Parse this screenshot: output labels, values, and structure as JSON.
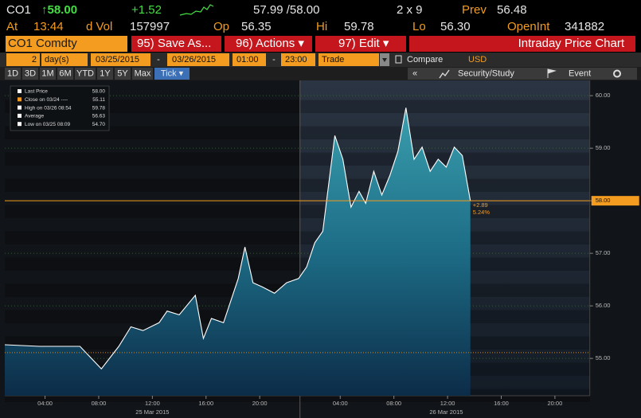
{
  "quote": {
    "ticker": "CO1",
    "last": "↑58.00",
    "change": "+1.52",
    "bid_ask": "57.99 /58.00",
    "size": "2 x 9",
    "prev_label": "Prev",
    "prev": "56.48"
  },
  "stats": [
    {
      "label": "At",
      "value": "13:44"
    },
    {
      "label": "d Vol",
      "value": "157997"
    },
    {
      "label": "Op",
      "value": "56.35"
    },
    {
      "label": "Hi",
      "value": "59.78"
    },
    {
      "label": "Lo",
      "value": "56.30"
    },
    {
      "label": "OpenInt",
      "value": "341882"
    }
  ],
  "toolbar": {
    "security": "CO1 Comdty",
    "buttons": [
      "95) Save As...",
      "96) Actions ▾",
      "97) Edit ▾"
    ],
    "title": "Intraday Price Chart"
  },
  "settings": {
    "period": "2",
    "unit": "day(s)",
    "start_date": "03/25/2015",
    "date_sep": "-",
    "end_date": "03/26/2015",
    "start_time": "01:00",
    "time_sep": "-",
    "end_time": "23:00",
    "field": "Trade",
    "compare": "Compare",
    "currency": "USD"
  },
  "ranges": [
    "1D",
    "3D",
    "1M",
    "6M",
    "YTD",
    "1Y",
    "5Y",
    "Max",
    "Tick ▾"
  ],
  "tools": [
    "«",
    "Security/Study",
    "Event"
  ],
  "legend": [
    {
      "label": "Last Price",
      "value": "58.00"
    },
    {
      "label": "Close on 03/24 ----",
      "value": "55.11"
    },
    {
      "label": "High on 03/26 08:54",
      "value": "59.78"
    },
    {
      "label": "Average",
      "value": "56.63"
    },
    {
      "label": "Low on 03/25 08:09",
      "value": "54.70"
    }
  ],
  "chart_data": {
    "type": "line",
    "x": [
      0,
      2.6,
      5.6,
      7.2,
      8.5,
      9.4,
      10.3,
      11.5,
      12.1,
      13.0,
      14.2,
      14.8,
      15.4,
      16.3,
      17.4,
      17.9,
      18.5,
      19.2,
      20.1,
      21.0,
      21.9,
      22.5,
      23.1,
      23.7,
      24.0,
      24.6,
      25.2,
      25.8,
      26.4,
      26.9,
      27.5,
      28.1,
      28.7,
      29.3,
      29.9,
      30.5,
      31.1,
      31.7,
      32.3,
      32.9,
      33.5,
      34.1,
      34.7
    ],
    "values": [
      55.26,
      55.23,
      55.23,
      54.8,
      55.23,
      55.6,
      55.53,
      55.68,
      55.9,
      55.83,
      56.2,
      55.38,
      55.76,
      55.68,
      56.52,
      57.12,
      56.44,
      56.36,
      56.24,
      56.44,
      56.52,
      56.74,
      57.2,
      57.42,
      58.03,
      59.24,
      58.79,
      57.88,
      58.18,
      57.95,
      58.56,
      58.11,
      58.48,
      58.94,
      59.77,
      58.79,
      59.02,
      58.56,
      58.79,
      58.64,
      59.02,
      58.86,
      58.0
    ],
    "color": "#ffffff",
    "xlim": [
      0,
      43.6
    ],
    "ylim": [
      54.29,
      60.29
    ],
    "yticks": [
      {
        "value": 55,
        "label": "55.00"
      },
      {
        "value": 56,
        "label": "56.00"
      },
      {
        "value": 57,
        "label": "57.00"
      },
      {
        "value": 58,
        "label": "58.00"
      },
      {
        "value": 59,
        "label": "59.00"
      },
      {
        "value": 60,
        "label": "60.00"
      }
    ],
    "xticks": [
      {
        "value": 3,
        "label": "04:00"
      },
      {
        "value": 7,
        "label": "08:00"
      },
      {
        "value": 11,
        "label": "12:00"
      },
      {
        "value": 15,
        "label": "16:00"
      },
      {
        "value": 19,
        "label": "20:00"
      },
      {
        "value": 25,
        "label": "04:00"
      },
      {
        "value": 29,
        "label": "08:00"
      },
      {
        "value": 33,
        "label": "12:00"
      },
      {
        "value": 37,
        "label": "16:00"
      },
      {
        "value": 41,
        "label": "20:00"
      }
    ],
    "date_labels": [
      {
        "value": 11,
        "label": "25 Mar 2015"
      },
      {
        "value": 32.9,
        "label": "26 Mar 2015"
      }
    ],
    "session_break": 22,
    "ref_lines": [
      {
        "value": 58,
        "label": "58.00",
        "color": "#f39c1f"
      },
      {
        "value": 55.11,
        "color": "#d9861a",
        "dashed": true
      }
    ],
    "annotation": [
      "+2.89",
      "5.24%"
    ],
    "grid": true
  }
}
